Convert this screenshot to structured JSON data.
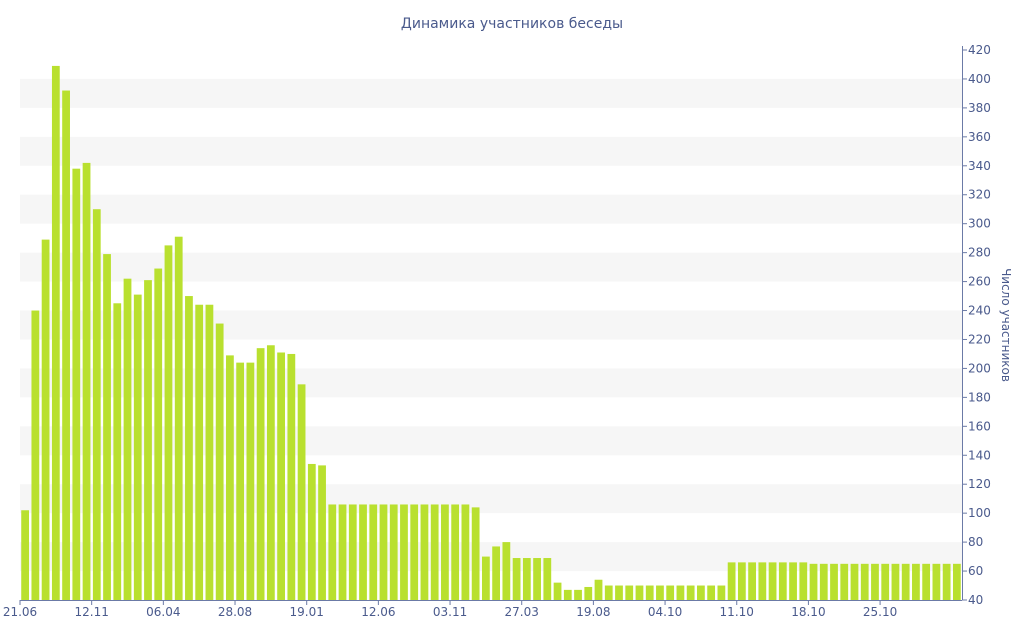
{
  "chart_data": {
    "type": "bar",
    "title": "Динамика участников беседы",
    "xlabel": "",
    "ylabel": "Число участников",
    "ylim": [
      40,
      420
    ],
    "yticks": [
      40,
      60,
      80,
      100,
      120,
      140,
      160,
      180,
      200,
      220,
      240,
      260,
      280,
      300,
      320,
      340,
      360,
      380,
      400,
      420
    ],
    "x_tick_labels": [
      {
        "label": "21.06",
        "index": 0
      },
      {
        "label": "12.11",
        "index": 7
      },
      {
        "label": "06.04",
        "index": 14
      },
      {
        "label": "28.08",
        "index": 21
      },
      {
        "label": "19.01",
        "index": 28
      },
      {
        "label": "12.06",
        "index": 35
      },
      {
        "label": "03.11",
        "index": 42
      },
      {
        "label": "27.03",
        "index": 49
      },
      {
        "label": "19.08",
        "index": 56
      },
      {
        "label": "04.10",
        "index": 63
      },
      {
        "label": "11.10",
        "index": 70
      },
      {
        "label": "18.10",
        "index": 77
      },
      {
        "label": "25.10",
        "index": 84
      }
    ],
    "grid": true,
    "bar_color": "#b9e02f",
    "values": [
      102,
      240,
      289,
      409,
      392,
      338,
      342,
      310,
      279,
      245,
      262,
      251,
      261,
      269,
      285,
      291,
      250,
      244,
      244,
      231,
      209,
      204,
      204,
      214,
      216,
      211,
      210,
      189,
      134,
      133,
      106,
      106,
      106,
      106,
      106,
      106,
      106,
      106,
      106,
      106,
      106,
      106,
      106,
      106,
      104,
      70,
      77,
      80,
      69,
      69,
      69,
      69,
      52,
      47,
      47,
      49,
      54,
      50,
      50,
      50,
      50,
      50,
      50,
      50,
      50,
      50,
      50,
      50,
      50,
      66,
      66,
      66,
      66,
      66,
      66,
      66,
      66,
      65,
      65,
      65,
      65,
      65,
      65,
      65,
      65,
      65,
      65,
      65,
      65,
      65,
      65,
      65
    ]
  }
}
